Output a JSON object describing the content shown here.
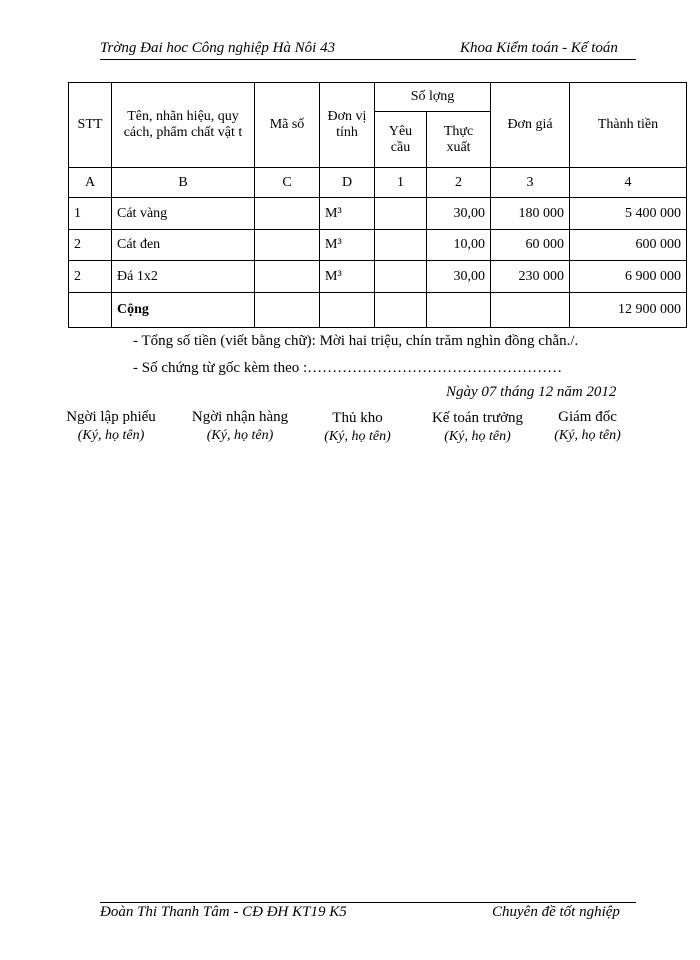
{
  "header": {
    "left": "Trờng   Đai hoc Công nghiệp Hà Nôi   43",
    "right": "Khoa Kiểm toán - Kế toán"
  },
  "table": {
    "headers": {
      "stt": "STT",
      "name": "Tên, nhãn hiệu, quy cách, phẩm chất vật t",
      "code": "Mã số",
      "unit": "Đơn vị tính",
      "qty": "Số lợng",
      "req": "Yêu cầu",
      "actual": "Thực xuất",
      "price": "Đơn giá",
      "amount": "Thành tiền"
    },
    "codes": [
      "A",
      "B",
      "C",
      "D",
      "1",
      "2",
      "3",
      "4"
    ],
    "rows": [
      {
        "stt": "1",
        "name": "Cát vàng",
        "code": "",
        "unit": "M³",
        "req": "",
        "actual": "30,00",
        "price": "180 000",
        "amount": "5 400 000"
      },
      {
        "stt": "2",
        "name": "Cát đen",
        "code": "",
        "unit": "M³",
        "req": "",
        "actual": "10,00",
        "price": "60 000",
        "amount": "600 000"
      },
      {
        "stt": "2",
        "name": "Đá 1x2",
        "code": "",
        "unit": "M³",
        "req": "",
        "actual": "30,00",
        "price": "230 000",
        "amount": "6 900 000"
      }
    ],
    "total": {
      "label": "Cộng",
      "amount": "12 900 000"
    }
  },
  "notes": {
    "words": "- Tổng số tiền (viết bằng chữ): Mời   hai triệu, chín trăm nghìn đồng chẵn./.",
    "docs": "- Số chứng từ gốc kèm theo :……………………………………………",
    "date": "Ngày 07 tháng 12 năm 2012"
  },
  "signatures": [
    {
      "role": "Ngời   lập phiếu",
      "note": "(Ký, họ tên)"
    },
    {
      "role": "Ngời   nhận hàng",
      "note": "(Ký, họ tên)"
    },
    {
      "role": "Thủ kho",
      "note": "(Ký, họ tên)"
    },
    {
      "role": "Kế toán trưởng",
      "note": "(Ký, họ tên)"
    },
    {
      "role": "Giám đốc",
      "note": "(Ký, họ tên)"
    }
  ],
  "footer": {
    "left": "Đoàn Thi Thanh Tâm -  CĐ ĐH KT19 K5",
    "right": "Chuyên đề tốt nghiệp"
  }
}
